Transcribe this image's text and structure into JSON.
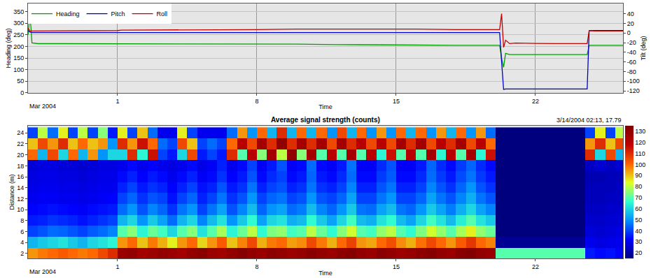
{
  "chart_data": [
    {
      "type": "line",
      "grid": true,
      "legend": "top left",
      "x_label": "Time",
      "x_caption": "Mar 2004",
      "y_label": "Heading (deg)",
      "y2_label": "Tilt (deg)",
      "xlim": [
        -3.5,
        26.4
      ],
      "xticks": [
        1,
        8,
        15,
        22
      ],
      "ylim": [
        0,
        385
      ],
      "yticks": [
        0,
        50,
        100,
        150,
        200,
        250,
        300,
        350
      ],
      "y2lim": [
        -124,
        61
      ],
      "y2ticks": [
        -120,
        -100,
        -80,
        -60,
        -40,
        -20,
        0,
        20,
        40
      ],
      "x": [
        -3.5,
        -3.4,
        -3.3,
        -3,
        -2,
        0,
        1,
        1.2,
        2,
        4,
        6,
        8,
        10,
        12,
        14,
        16,
        18,
        20,
        20.2,
        20.3,
        20.4,
        20.5,
        20.7,
        21,
        22,
        23,
        24,
        24.5,
        24.6,
        24.7,
        25,
        26.4
      ],
      "series": [
        {
          "name": "Heading",
          "color": "#00a000",
          "values": [
            250,
            340,
            215,
            212,
            212,
            212,
            212,
            210,
            210,
            210,
            210,
            210,
            210,
            208,
            208,
            206,
            205,
            205,
            205,
            150,
            110,
            170,
            165,
            165,
            165,
            165,
            165,
            165,
            165,
            205,
            205,
            205
          ]
        },
        {
          "name": "Pitch",
          "color": "#0000c8",
          "axis": "y2",
          "values": [
            5,
            2,
            1,
            1,
            1,
            1,
            1,
            1,
            1,
            1,
            1,
            1,
            1,
            1,
            1,
            1,
            1,
            1,
            1,
            -60,
            -117,
            -116,
            -116,
            -116,
            -116,
            -116,
            -116,
            -116,
            -116,
            5,
            5,
            5
          ]
        },
        {
          "name": "Roll",
          "color": "#c80000",
          "axis": "y2",
          "values": [
            10,
            4,
            4,
            4,
            4,
            4,
            5,
            6,
            6,
            6,
            6,
            7,
            8,
            8,
            9,
            8,
            7,
            7,
            7,
            40,
            -30,
            -15,
            -22,
            -21,
            -22,
            -22,
            -22,
            -22,
            -22,
            5,
            4,
            4
          ]
        }
      ]
    },
    {
      "type": "heatmap",
      "grid": false,
      "title": "Average signal strength (counts)",
      "annotation": "3/14/2004 02:13, 17.79",
      "x_label": "Time",
      "x_caption": "Mar 2004",
      "y_label": "Distance (m)",
      "xlim": [
        -3.5,
        26.4
      ],
      "xticks": [
        1,
        8,
        15,
        22
      ],
      "ylim": [
        1.1,
        25.3
      ],
      "yticks": [
        2,
        4,
        6,
        8,
        10,
        12,
        14,
        16,
        18,
        20,
        22,
        24
      ],
      "zlim": [
        15,
        135
      ],
      "zticks": [
        20,
        30,
        40,
        50,
        60,
        70,
        80,
        90,
        100,
        110,
        120,
        130
      ],
      "colors": [
        "#00007f",
        "#0000ff",
        "#0090ff",
        "#30ffd0",
        "#e0ff20",
        "#ff6000",
        "#c00000",
        "#7f0000"
      ],
      "x": [
        -3.25,
        -2.75,
        -2.25,
        -1.75,
        -1.25,
        -0.75,
        -0.25,
        0.25,
        0.75,
        1.25,
        1.75,
        2.25,
        2.75,
        3.25,
        3.75,
        4.25,
        4.75,
        5.25,
        5.75,
        6.25,
        6.75,
        7.25,
        7.75,
        8.25,
        8.75,
        9.25,
        9.75,
        10.25,
        10.75,
        11.25,
        11.75,
        12.25,
        12.75,
        13.25,
        13.75,
        14.25,
        14.75,
        15.25,
        15.75,
        16.25,
        16.75,
        17.25,
        17.75,
        18.25,
        18.75,
        19.25,
        19.75,
        20.25,
        20.75,
        21.25,
        21.75,
        22.25,
        22.75,
        23.25,
        23.75,
        24.25,
        24.75,
        25.25,
        25.75,
        26.25
      ],
      "y": [
        2,
        4,
        6,
        8,
        10,
        12,
        14,
        16,
        18,
        20,
        22,
        24
      ],
      "z": [
        [
          95,
          98,
          100,
          102,
          100,
          98,
          100,
          105,
          110,
          128,
          130,
          125,
          127,
          130,
          128,
          125,
          130,
          132,
          128,
          126,
          130,
          133,
          130,
          128,
          131,
          130,
          127,
          129,
          132,
          130,
          128,
          131,
          133,
          130,
          128,
          132,
          130,
          127,
          129,
          131,
          133,
          130,
          128,
          132,
          134,
          130,
          128,
          70,
          70,
          70,
          70,
          70,
          70,
          70,
          70,
          70,
          35,
          33,
          34,
          32
        ],
        [
          55,
          58,
          60,
          62,
          58,
          55,
          60,
          62,
          65,
          95,
          100,
          90,
          98,
          92,
          85,
          95,
          100,
          88,
          95,
          102,
          90,
          97,
          105,
          92,
          98,
          100,
          94,
          96,
          105,
          98,
          92,
          100,
          106,
          95,
          93,
          100,
          104,
          96,
          92,
          99,
          105,
          100,
          95,
          102,
          108,
          100,
          97,
          18,
          18,
          18,
          18,
          18,
          18,
          18,
          18,
          18,
          30,
          28,
          29,
          30
        ],
        [
          40,
          42,
          45,
          44,
          42,
          40,
          43,
          45,
          48,
          70,
          75,
          65,
          72,
          68,
          60,
          70,
          75,
          62,
          70,
          78,
          65,
          72,
          80,
          66,
          74,
          76,
          68,
          70,
          80,
          72,
          66,
          75,
          82,
          70,
          68,
          76,
          80,
          70,
          66,
          74,
          82,
          76,
          70,
          78,
          85,
          76,
          72,
          15,
          15,
          15,
          15,
          15,
          15,
          15,
          15,
          15,
          27,
          26,
          27,
          28
        ],
        [
          35,
          36,
          38,
          37,
          36,
          34,
          36,
          38,
          40,
          55,
          60,
          50,
          58,
          52,
          45,
          55,
          60,
          48,
          56,
          62,
          50,
          58,
          66,
          52,
          60,
          62,
          54,
          56,
          66,
          58,
          52,
          60,
          68,
          56,
          54,
          62,
          66,
          56,
          52,
          60,
          68,
          62,
          56,
          64,
          70,
          62,
          58,
          15,
          15,
          15,
          15,
          15,
          15,
          15,
          15,
          15,
          25,
          25,
          26,
          26
        ],
        [
          32,
          33,
          34,
          33,
          32,
          31,
          33,
          34,
          35,
          45,
          50,
          42,
          48,
          44,
          38,
          46,
          50,
          40,
          46,
          52,
          42,
          48,
          56,
          44,
          50,
          52,
          45,
          47,
          56,
          48,
          44,
          50,
          58,
          46,
          45,
          52,
          56,
          46,
          44,
          50,
          58,
          52,
          47,
          54,
          60,
          52,
          48,
          14,
          14,
          14,
          14,
          14,
          14,
          14,
          14,
          14,
          24,
          24,
          25,
          25
        ],
        [
          30,
          31,
          31,
          30,
          30,
          29,
          30,
          31,
          32,
          40,
          44,
          38,
          42,
          40,
          34,
          40,
          44,
          36,
          40,
          46,
          38,
          42,
          50,
          40,
          44,
          46,
          40,
          42,
          50,
          42,
          40,
          44,
          52,
          40,
          40,
          46,
          50,
          40,
          40,
          44,
          52,
          46,
          42,
          48,
          54,
          46,
          42,
          14,
          14,
          14,
          14,
          14,
          14,
          14,
          14,
          14,
          23,
          23,
          24,
          24
        ],
        [
          29,
          30,
          30,
          29,
          29,
          28,
          29,
          30,
          30,
          36,
          40,
          35,
          38,
          36,
          32,
          36,
          40,
          34,
          36,
          42,
          35,
          38,
          46,
          36,
          40,
          42,
          36,
          38,
          46,
          38,
          36,
          40,
          48,
          36,
          36,
          42,
          46,
          36,
          36,
          40,
          48,
          42,
          38,
          44,
          50,
          42,
          38,
          14,
          14,
          14,
          14,
          14,
          14,
          14,
          14,
          14,
          23,
          23,
          23,
          24
        ],
        [
          28,
          29,
          29,
          28,
          28,
          27,
          28,
          29,
          29,
          33,
          36,
          32,
          35,
          33,
          30,
          33,
          36,
          31,
          33,
          38,
          32,
          35,
          42,
          33,
          37,
          40,
          33,
          35,
          44,
          35,
          33,
          37,
          45,
          33,
          33,
          39,
          43,
          33,
          33,
          37,
          45,
          39,
          35,
          41,
          46,
          39,
          35,
          14,
          14,
          14,
          14,
          14,
          14,
          14,
          14,
          14,
          22,
          22,
          23,
          23
        ],
        [
          27,
          28,
          28,
          27,
          27,
          26,
          27,
          28,
          28,
          30,
          33,
          30,
          32,
          30,
          28,
          30,
          33,
          29,
          31,
          36,
          30,
          33,
          40,
          31,
          35,
          42,
          31,
          33,
          45,
          33,
          31,
          35,
          46,
          31,
          31,
          37,
          42,
          31,
          31,
          35,
          44,
          37,
          33,
          39,
          44,
          37,
          33,
          14,
          14,
          14,
          14,
          14,
          14,
          14,
          14,
          14,
          24,
          26,
          24,
          26
        ],
        [
          100,
          55,
          105,
          60,
          100,
          55,
          95,
          50,
          60,
          60,
          110,
          65,
          115,
          40,
          35,
          60,
          105,
          35,
          40,
          35,
          110,
          70,
          120,
          75,
          125,
          80,
          130,
          75,
          125,
          70,
          120,
          70,
          125,
          70,
          120,
          65,
          115,
          70,
          120,
          70,
          125,
          65,
          120,
          70,
          125,
          65,
          115,
          14,
          14,
          14,
          14,
          14,
          14,
          14,
          14,
          14,
          110,
          60,
          105,
          55
        ],
        [
          90,
          105,
          95,
          110,
          90,
          100,
          90,
          95,
          50,
          110,
          95,
          115,
          100,
          45,
          40,
          105,
          90,
          40,
          45,
          40,
          100,
          120,
          105,
          125,
          110,
          130,
          110,
          125,
          110,
          125,
          105,
          125,
          110,
          120,
          105,
          120,
          105,
          125,
          110,
          125,
          105,
          120,
          110,
          125,
          105,
          120,
          100,
          14,
          14,
          14,
          14,
          14,
          14,
          14,
          14,
          14,
          95,
          110,
          90,
          105
        ],
        [
          40,
          80,
          45,
          85,
          40,
          80,
          40,
          75,
          35,
          85,
          40,
          90,
          45,
          30,
          30,
          85,
          40,
          30,
          30,
          30,
          45,
          95,
          50,
          100,
          55,
          110,
          55,
          100,
          55,
          100,
          50,
          105,
          55,
          100,
          50,
          95,
          50,
          100,
          55,
          100,
          50,
          95,
          55,
          100,
          50,
          95,
          45,
          14,
          14,
          14,
          14,
          14,
          14,
          14,
          14,
          14,
          40,
          85,
          40,
          80
        ]
      ]
    }
  ]
}
